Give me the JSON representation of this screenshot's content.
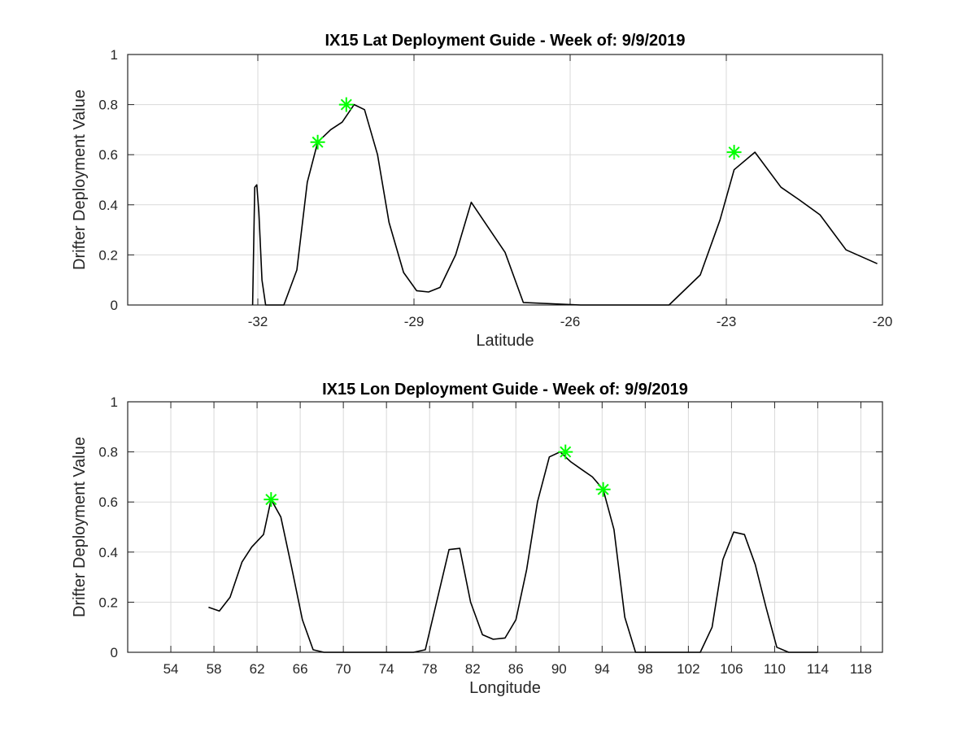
{
  "chart_data": [
    {
      "type": "line",
      "title": "IX15 Lat Deployment Guide - Week of: 9/9/2019",
      "xlabel": "Latitude",
      "ylabel": "Drifter Deployment Value",
      "xlim": [
        -34.5,
        -20
      ],
      "ylim": [
        0,
        1
      ],
      "xticks": [
        -32,
        -29,
        -26,
        -23,
        -20
      ],
      "xtick_labels": [
        "-32",
        "-29",
        "-26",
        "-23",
        "-20"
      ],
      "yticks": [
        0,
        0.2,
        0.4,
        0.6,
        0.8,
        1
      ],
      "ytick_labels": [
        "0",
        "0.2",
        "0.4",
        "0.6",
        "0.8",
        "1"
      ],
      "grid": true,
      "line_color": "#000000",
      "marker_color": "#00ff00",
      "series": [
        {
          "x": [
            -32.1,
            -32.06,
            -32.02,
            -31.98,
            -31.92,
            -31.85,
            -31.5,
            -31.25,
            -31.05,
            -30.85,
            -30.6,
            -30.38,
            -30.15,
            -29.95,
            -29.7,
            -29.48,
            -29.2,
            -28.95,
            -28.72,
            -28.5,
            -28.2,
            -27.9,
            -27.25,
            -26.9,
            -25.8,
            -24.6,
            -24.1,
            -23.5,
            -23.12,
            -22.85,
            -22.45,
            -21.95,
            -21.6,
            -21.2,
            -20.7,
            -20.1
          ],
          "y": [
            0,
            0.47,
            0.48,
            0.37,
            0.1,
            0,
            0,
            0.14,
            0.49,
            0.65,
            0.7,
            0.73,
            0.8,
            0.78,
            0.6,
            0.33,
            0.13,
            0.057,
            0.052,
            0.07,
            0.2,
            0.41,
            0.21,
            0.01,
            0,
            0,
            0,
            0.12,
            0.34,
            0.54,
            0.61,
            0.47,
            0.42,
            0.36,
            0.22,
            0.165
          ]
        }
      ],
      "markers": {
        "x": [
          -30.85,
          -30.3,
          -22.85
        ],
        "y": [
          0.65,
          0.8,
          0.61
        ]
      }
    },
    {
      "type": "line",
      "title": "IX15 Lon Deployment Guide - Week of: 9/9/2019",
      "xlabel": "Longitude",
      "ylabel": "Drifter Deployment Value",
      "xlim": [
        50,
        120
      ],
      "ylim": [
        0,
        1
      ],
      "xticks": [
        54,
        58,
        62,
        66,
        70,
        74,
        78,
        82,
        86,
        90,
        94,
        98,
        102,
        106,
        110,
        114,
        118
      ],
      "xtick_labels": [
        "54",
        "58",
        "62",
        "66",
        "70",
        "74",
        "78",
        "82",
        "86",
        "90",
        "94",
        "98",
        "102",
        "106",
        "110",
        "114",
        "118"
      ],
      "yticks": [
        0,
        0.2,
        0.4,
        0.6,
        0.8,
        1
      ],
      "ytick_labels": [
        "0",
        "0.2",
        "0.4",
        "0.6",
        "0.8",
        "1"
      ],
      "grid": true,
      "line_color": "#000000",
      "marker_color": "#00ff00",
      "series": [
        {
          "x": [
            57.5,
            58.5,
            59.5,
            60.6,
            61.5,
            62.6,
            63.3,
            64.2,
            65.2,
            66.2,
            67.2,
            68.2,
            76.5,
            77.6,
            78.7,
            79.8,
            80.8,
            81.8,
            82.9,
            83.9,
            85.0,
            86.0,
            87.0,
            88.0,
            89.1,
            90.1,
            91.1,
            92.1,
            93.1,
            94.1,
            95.1,
            96.1,
            97.1,
            98.1,
            103.1,
            104.2,
            105.2,
            106.2,
            107.2,
            108.2,
            109.2,
            110.2,
            111.3,
            112.3,
            114.0
          ],
          "y": [
            0.18,
            0.165,
            0.22,
            0.36,
            0.42,
            0.47,
            0.61,
            0.54,
            0.34,
            0.13,
            0.01,
            0,
            0,
            0.01,
            0.21,
            0.41,
            0.415,
            0.2,
            0.07,
            0.052,
            0.057,
            0.13,
            0.33,
            0.6,
            0.78,
            0.8,
            0.76,
            0.73,
            0.7,
            0.65,
            0.49,
            0.14,
            0,
            0,
            0,
            0.1,
            0.37,
            0.48,
            0.47,
            0.35,
            0.18,
            0.02,
            0,
            0,
            0
          ]
        }
      ],
      "markers": {
        "x": [
          63.3,
          90.6,
          94.1
        ],
        "y": [
          0.61,
          0.8,
          0.65
        ]
      }
    }
  ]
}
